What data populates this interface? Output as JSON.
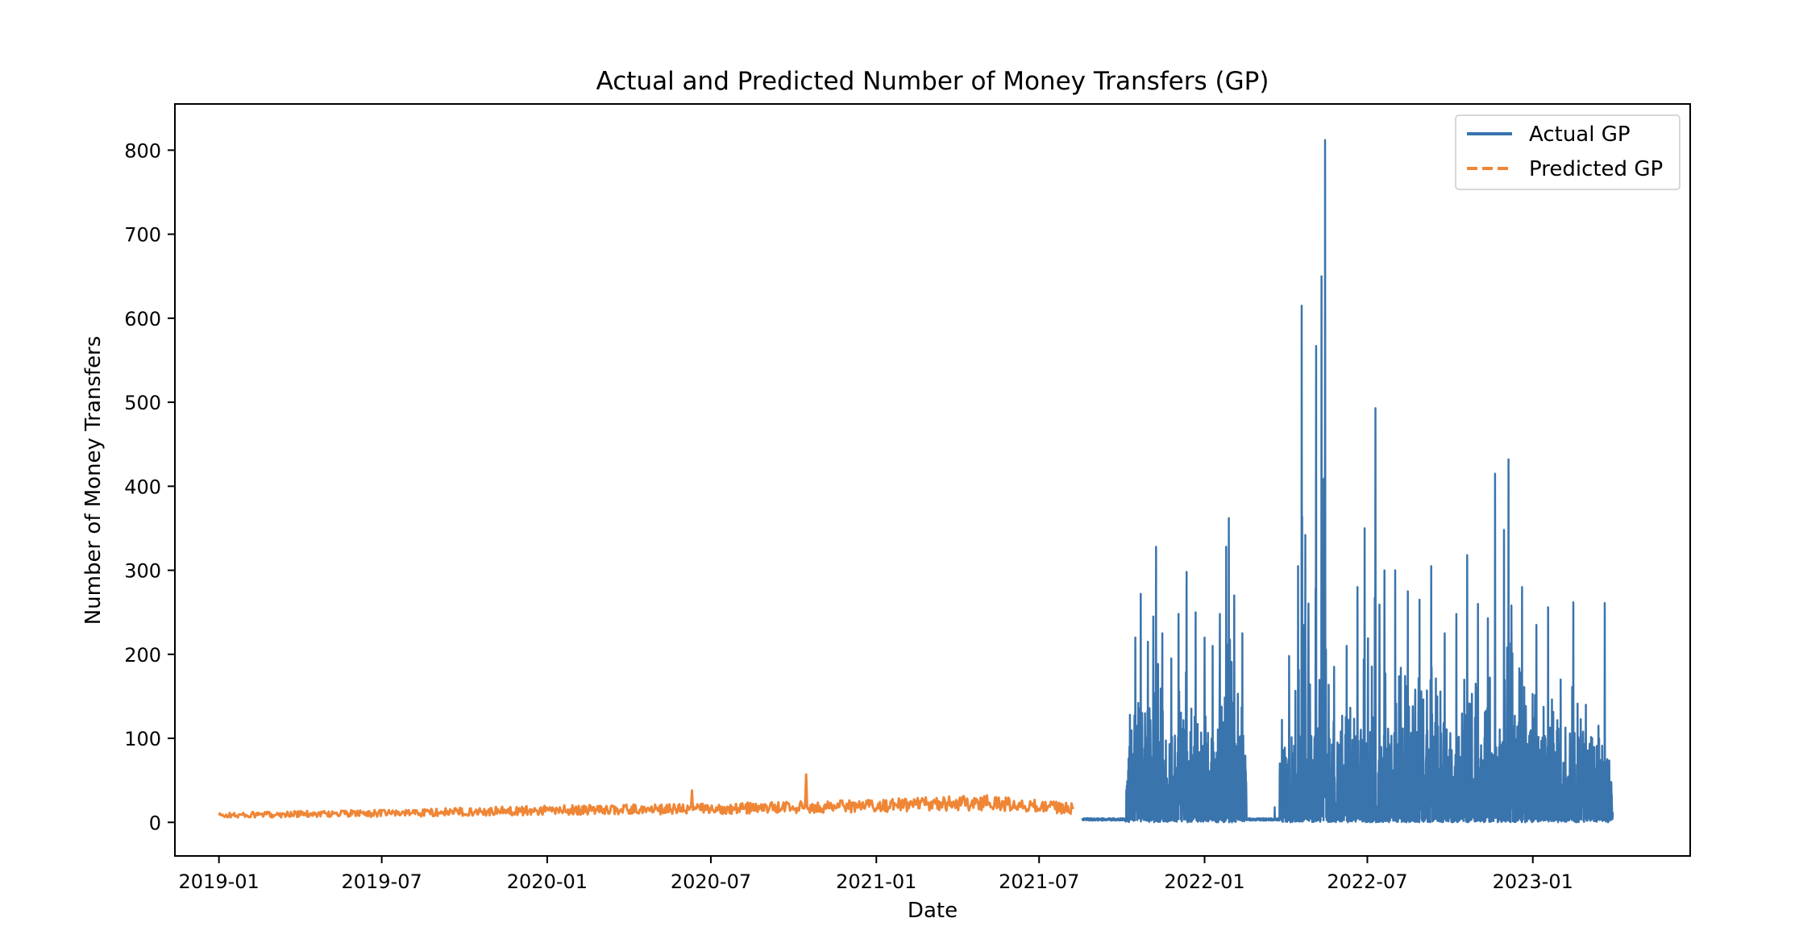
{
  "chart_data": {
    "type": "line",
    "title": "Actual and Predicted Number of Money Transfers (GP)",
    "xlabel": "Date",
    "ylabel": "Number of Money Transfers",
    "x_ticks": [
      "2019-01",
      "2019-07",
      "2020-01",
      "2020-07",
      "2021-01",
      "2021-07",
      "2022-01",
      "2022-07",
      "2023-01"
    ],
    "y_ticks": [
      0,
      100,
      200,
      300,
      400,
      500,
      600,
      700,
      800
    ],
    "xlim": [
      "2018-11-13",
      "2023-06-25"
    ],
    "ylim": [
      -40,
      855
    ],
    "legend": "top-right",
    "grid": false,
    "series": [
      {
        "name": "Actual GP",
        "color": "#3a74ad",
        "style": "solid",
        "date_range": [
          "2021-08-18",
          "2023-03-31"
        ],
        "notes_points": [
          [
            "2021-08-18",
            5
          ],
          [
            "2021-09-05",
            3
          ],
          [
            "2021-10-01",
            4
          ],
          [
            "2021-10-10",
            128
          ],
          [
            "2021-10-16",
            220
          ],
          [
            "2021-10-22",
            272
          ],
          [
            "2021-10-30",
            215
          ],
          [
            "2021-11-05",
            245
          ],
          [
            "2021-11-08",
            328
          ],
          [
            "2021-11-15",
            225
          ],
          [
            "2021-11-25",
            195
          ],
          [
            "2021-12-03",
            248
          ],
          [
            "2021-12-12",
            298
          ],
          [
            "2021-12-22",
            250
          ],
          [
            "2022-01-01",
            220
          ],
          [
            "2022-01-10",
            210
          ],
          [
            "2022-01-18",
            248
          ],
          [
            "2022-01-25",
            328
          ],
          [
            "2022-01-28",
            362
          ],
          [
            "2022-02-03",
            270
          ],
          [
            "2022-02-12",
            225
          ],
          [
            "2022-02-18",
            3
          ],
          [
            "2022-03-08",
            2
          ],
          [
            "2022-03-20",
            18
          ],
          [
            "2022-03-28",
            122
          ],
          [
            "2022-04-05",
            198
          ],
          [
            "2022-04-15",
            305
          ],
          [
            "2022-04-19",
            615
          ],
          [
            "2022-04-23",
            342
          ],
          [
            "2022-05-05",
            567
          ],
          [
            "2022-05-11",
            650
          ],
          [
            "2022-05-15",
            812
          ],
          [
            "2022-05-25",
            185
          ],
          [
            "2022-06-08",
            210
          ],
          [
            "2022-06-20",
            280
          ],
          [
            "2022-06-28",
            350
          ],
          [
            "2022-07-10",
            493
          ],
          [
            "2022-07-20",
            300
          ],
          [
            "2022-08-01",
            300
          ],
          [
            "2022-08-15",
            275
          ],
          [
            "2022-08-28",
            265
          ],
          [
            "2022-09-10",
            305
          ],
          [
            "2022-09-25",
            225
          ],
          [
            "2022-10-08",
            248
          ],
          [
            "2022-10-20",
            318
          ],
          [
            "2022-11-01",
            260
          ],
          [
            "2022-11-12",
            243
          ],
          [
            "2022-11-20",
            415
          ],
          [
            "2022-11-30",
            348
          ],
          [
            "2022-12-05",
            432
          ],
          [
            "2022-12-20",
            280
          ],
          [
            "2023-01-05",
            235
          ],
          [
            "2023-01-18",
            256
          ],
          [
            "2023-02-01",
            170
          ],
          [
            "2023-02-15",
            262
          ],
          [
            "2023-03-01",
            140
          ],
          [
            "2023-03-15",
            115
          ],
          [
            "2023-03-22",
            261
          ],
          [
            "2023-03-31",
            12
          ]
        ]
      },
      {
        "name": "Predicted GP",
        "color": "#ef8636",
        "style": "dashed",
        "date_range": [
          "2019-01-01",
          "2021-08-08"
        ],
        "notes_points": [
          [
            "2019-01-01",
            9
          ],
          [
            "2019-04-01",
            11
          ],
          [
            "2019-07-01",
            12
          ],
          [
            "2019-10-01",
            14
          ],
          [
            "2020-01-01",
            16
          ],
          [
            "2020-04-01",
            17
          ],
          [
            "2020-06-10",
            38
          ],
          [
            "2020-07-01",
            18
          ],
          [
            "2020-10-01",
            20
          ],
          [
            "2020-10-15",
            57
          ],
          [
            "2021-01-01",
            22
          ],
          [
            "2021-03-01",
            24
          ],
          [
            "2021-05-01",
            26
          ],
          [
            "2021-08-08",
            18
          ]
        ]
      }
    ]
  }
}
